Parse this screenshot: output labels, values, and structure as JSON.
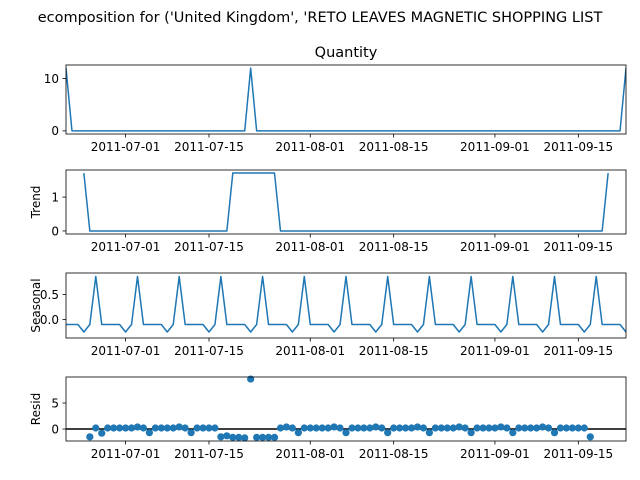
{
  "figure": {
    "suptitle": "ecomposition for ('United Kingdom', 'RETO LEAVES MAGNETIC SHOPPING LIST"
  },
  "x_tick_labels": [
    "2011-07-01",
    "2011-07-15",
    "2011-08-01",
    "2011-08-15",
    "2011-09-01",
    "2011-09-15"
  ],
  "colors": {
    "line": "#1f77b4",
    "axes": "#000000",
    "background": "#ffffff"
  },
  "chart_data": [
    {
      "type": "line",
      "title": "Quantity",
      "ylabel": "",
      "x_range": [
        "2011-06-21",
        "2011-09-23"
      ],
      "ylim": [
        -0.6,
        12.6
      ],
      "yticks": [
        0,
        10
      ],
      "ytick_labels": [
        "0",
        "10"
      ],
      "series": [
        {
          "points": [
            [
              "2011-06-21",
              12
            ],
            [
              "2011-06-22",
              0
            ],
            [
              "2011-07-21",
              0
            ],
            [
              "2011-07-22",
              12
            ],
            [
              "2011-07-23",
              0
            ],
            [
              "2011-09-22",
              0
            ],
            [
              "2011-09-23",
              12
            ]
          ]
        }
      ]
    },
    {
      "type": "line",
      "title": "",
      "ylabel": "Trend",
      "x_range": [
        "2011-06-21",
        "2011-09-23"
      ],
      "ylim": [
        -0.09,
        1.8
      ],
      "yticks": [
        0,
        1
      ],
      "ytick_labels": [
        "0",
        "1"
      ],
      "series": [
        {
          "points": [
            [
              "2011-06-24",
              1.71
            ],
            [
              "2011-06-25",
              0
            ],
            [
              "2011-07-18",
              0
            ],
            [
              "2011-07-19",
              1.71
            ],
            [
              "2011-07-26",
              1.71
            ],
            [
              "2011-07-27",
              0
            ],
            [
              "2011-09-19",
              0
            ],
            [
              "2011-09-20",
              1.71
            ]
          ]
        }
      ]
    },
    {
      "type": "line",
      "title": "",
      "ylabel": "Seasonal",
      "x_range": [
        "2011-06-21",
        "2011-09-23"
      ],
      "ylim": [
        -0.37,
        0.93
      ],
      "yticks": [
        0,
        0.5
      ],
      "ytick_labels": [
        "0.0",
        "0.5"
      ],
      "series": [
        {
          "weekly_pattern": [
            -0.1,
            -0.1,
            -0.1,
            -0.25,
            -0.1,
            0.86,
            -0.1
          ],
          "points": [
            [
              "2011-06-21",
              -0.1
            ],
            [
              "2011-06-22",
              -0.1
            ],
            [
              "2011-06-23",
              -0.1
            ],
            [
              "2011-06-24",
              -0.25
            ],
            [
              "2011-06-25",
              -0.1
            ],
            [
              "2011-06-26",
              0.86
            ],
            [
              "2011-06-27",
              -0.1
            ],
            [
              "2011-06-28",
              -0.1
            ],
            [
              "2011-06-29",
              -0.1
            ],
            [
              "2011-06-30",
              -0.1
            ],
            [
              "2011-07-01",
              -0.25
            ],
            [
              "2011-07-02",
              -0.1
            ],
            [
              "2011-07-03",
              0.86
            ],
            [
              "2011-07-04",
              -0.1
            ],
            [
              "2011-07-05",
              -0.1
            ],
            [
              "2011-07-06",
              -0.1
            ],
            [
              "2011-07-07",
              -0.1
            ],
            [
              "2011-07-08",
              -0.25
            ],
            [
              "2011-07-09",
              -0.1
            ],
            [
              "2011-07-10",
              0.86
            ],
            [
              "2011-07-11",
              -0.1
            ],
            [
              "2011-07-12",
              -0.1
            ],
            [
              "2011-07-13",
              -0.1
            ],
            [
              "2011-07-14",
              -0.1
            ],
            [
              "2011-07-15",
              -0.25
            ],
            [
              "2011-07-16",
              -0.1
            ],
            [
              "2011-07-17",
              0.86
            ],
            [
              "2011-07-18",
              -0.1
            ],
            [
              "2011-07-19",
              -0.1
            ],
            [
              "2011-07-20",
              -0.1
            ],
            [
              "2011-07-21",
              -0.1
            ],
            [
              "2011-07-22",
              -0.25
            ],
            [
              "2011-07-23",
              -0.1
            ],
            [
              "2011-07-24",
              0.86
            ],
            [
              "2011-07-25",
              -0.1
            ],
            [
              "2011-07-26",
              -0.1
            ],
            [
              "2011-07-27",
              -0.1
            ],
            [
              "2011-07-28",
              -0.1
            ],
            [
              "2011-07-29",
              -0.25
            ],
            [
              "2011-07-30",
              -0.1
            ],
            [
              "2011-07-31",
              0.86
            ],
            [
              "2011-08-01",
              -0.1
            ],
            [
              "2011-08-02",
              -0.1
            ],
            [
              "2011-08-03",
              -0.1
            ],
            [
              "2011-08-04",
              -0.1
            ],
            [
              "2011-08-05",
              -0.25
            ],
            [
              "2011-08-06",
              -0.1
            ],
            [
              "2011-08-07",
              0.86
            ],
            [
              "2011-08-08",
              -0.1
            ],
            [
              "2011-08-09",
              -0.1
            ],
            [
              "2011-08-10",
              -0.1
            ],
            [
              "2011-08-11",
              -0.1
            ],
            [
              "2011-08-12",
              -0.25
            ],
            [
              "2011-08-13",
              -0.1
            ],
            [
              "2011-08-14",
              0.86
            ],
            [
              "2011-08-15",
              -0.1
            ],
            [
              "2011-08-16",
              -0.1
            ],
            [
              "2011-08-17",
              -0.1
            ],
            [
              "2011-08-18",
              -0.1
            ],
            [
              "2011-08-19",
              -0.25
            ],
            [
              "2011-08-20",
              -0.1
            ],
            [
              "2011-08-21",
              0.86
            ],
            [
              "2011-08-22",
              -0.1
            ],
            [
              "2011-08-23",
              -0.1
            ],
            [
              "2011-08-24",
              -0.1
            ],
            [
              "2011-08-25",
              -0.1
            ],
            [
              "2011-08-26",
              -0.25
            ],
            [
              "2011-08-27",
              -0.1
            ],
            [
              "2011-08-28",
              0.86
            ],
            [
              "2011-08-29",
              -0.1
            ],
            [
              "2011-08-30",
              -0.1
            ],
            [
              "2011-08-31",
              -0.1
            ],
            [
              "2011-09-01",
              -0.1
            ],
            [
              "2011-09-02",
              -0.25
            ],
            [
              "2011-09-03",
              -0.1
            ],
            [
              "2011-09-04",
              0.86
            ],
            [
              "2011-09-05",
              -0.1
            ],
            [
              "2011-09-06",
              -0.1
            ],
            [
              "2011-09-07",
              -0.1
            ],
            [
              "2011-09-08",
              -0.1
            ],
            [
              "2011-09-09",
              -0.25
            ],
            [
              "2011-09-10",
              -0.1
            ],
            [
              "2011-09-11",
              0.86
            ],
            [
              "2011-09-12",
              -0.1
            ],
            [
              "2011-09-13",
              -0.1
            ],
            [
              "2011-09-14",
              -0.1
            ],
            [
              "2011-09-15",
              -0.1
            ],
            [
              "2011-09-16",
              -0.25
            ],
            [
              "2011-09-17",
              -0.1
            ],
            [
              "2011-09-18",
              0.86
            ],
            [
              "2011-09-19",
              -0.1
            ],
            [
              "2011-09-20",
              -0.1
            ],
            [
              "2011-09-21",
              -0.1
            ],
            [
              "2011-09-22",
              -0.1
            ],
            [
              "2011-09-23",
              -0.25
            ]
          ]
        }
      ]
    },
    {
      "type": "scatter",
      "title": "",
      "ylabel": "Resid",
      "x_range": [
        "2011-06-21",
        "2011-09-23"
      ],
      "ylim": [
        -2.3,
        10.0
      ],
      "yticks": [
        0,
        5
      ],
      "ytick_labels": [
        "0",
        "5"
      ],
      "baseline": 0,
      "series": [
        {
          "points": [
            [
              "2011-06-25",
              -1.5
            ],
            [
              "2011-06-26",
              0.2
            ],
            [
              "2011-06-27",
              -0.8
            ],
            [
              "2011-06-28",
              0.2
            ],
            [
              "2011-06-29",
              0.2
            ],
            [
              "2011-06-30",
              0.2
            ],
            [
              "2011-07-01",
              0.2
            ],
            [
              "2011-07-02",
              0.2
            ],
            [
              "2011-07-03",
              0.4
            ],
            [
              "2011-07-04",
              0.2
            ],
            [
              "2011-07-05",
              -0.7
            ],
            [
              "2011-07-06",
              0.2
            ],
            [
              "2011-07-07",
              0.2
            ],
            [
              "2011-07-08",
              0.2
            ],
            [
              "2011-07-09",
              0.2
            ],
            [
              "2011-07-10",
              0.4
            ],
            [
              "2011-07-11",
              0.2
            ],
            [
              "2011-07-12",
              -0.7
            ],
            [
              "2011-07-13",
              0.2
            ],
            [
              "2011-07-14",
              0.2
            ],
            [
              "2011-07-15",
              0.2
            ],
            [
              "2011-07-16",
              0.2
            ],
            [
              "2011-07-17",
              -1.5
            ],
            [
              "2011-07-18",
              -1.3
            ],
            [
              "2011-07-19",
              -1.6
            ],
            [
              "2011-07-20",
              -1.6
            ],
            [
              "2011-07-21",
              -1.7
            ],
            [
              "2011-07-22",
              9.6
            ],
            [
              "2011-07-23",
              -1.6
            ],
            [
              "2011-07-24",
              -1.6
            ],
            [
              "2011-07-25",
              -1.6
            ],
            [
              "2011-07-26",
              -1.6
            ],
            [
              "2011-07-27",
              0.2
            ],
            [
              "2011-07-28",
              0.4
            ],
            [
              "2011-07-29",
              0.2
            ],
            [
              "2011-07-30",
              -0.7
            ],
            [
              "2011-07-31",
              0.2
            ],
            [
              "2011-08-01",
              0.2
            ],
            [
              "2011-08-02",
              0.2
            ],
            [
              "2011-08-03",
              0.2
            ],
            [
              "2011-08-04",
              0.2
            ],
            [
              "2011-08-05",
              0.4
            ],
            [
              "2011-08-06",
              0.2
            ],
            [
              "2011-08-07",
              -0.7
            ],
            [
              "2011-08-08",
              0.2
            ],
            [
              "2011-08-09",
              0.2
            ],
            [
              "2011-08-10",
              0.2
            ],
            [
              "2011-08-11",
              0.2
            ],
            [
              "2011-08-12",
              0.4
            ],
            [
              "2011-08-13",
              0.2
            ],
            [
              "2011-08-14",
              -0.7
            ],
            [
              "2011-08-15",
              0.2
            ],
            [
              "2011-08-16",
              0.2
            ],
            [
              "2011-08-17",
              0.2
            ],
            [
              "2011-08-18",
              0.2
            ],
            [
              "2011-08-19",
              0.4
            ],
            [
              "2011-08-20",
              0.2
            ],
            [
              "2011-08-21",
              -0.7
            ],
            [
              "2011-08-22",
              0.2
            ],
            [
              "2011-08-23",
              0.2
            ],
            [
              "2011-08-24",
              0.2
            ],
            [
              "2011-08-25",
              0.2
            ],
            [
              "2011-08-26",
              0.4
            ],
            [
              "2011-08-27",
              0.2
            ],
            [
              "2011-08-28",
              -0.7
            ],
            [
              "2011-08-29",
              0.2
            ],
            [
              "2011-08-30",
              0.2
            ],
            [
              "2011-08-31",
              0.2
            ],
            [
              "2011-09-01",
              0.2
            ],
            [
              "2011-09-02",
              0.4
            ],
            [
              "2011-09-03",
              0.2
            ],
            [
              "2011-09-04",
              -0.7
            ],
            [
              "2011-09-05",
              0.2
            ],
            [
              "2011-09-06",
              0.2
            ],
            [
              "2011-09-07",
              0.2
            ],
            [
              "2011-09-08",
              0.2
            ],
            [
              "2011-09-09",
              0.4
            ],
            [
              "2011-09-10",
              0.2
            ],
            [
              "2011-09-11",
              -0.7
            ],
            [
              "2011-09-12",
              0.2
            ],
            [
              "2011-09-13",
              0.2
            ],
            [
              "2011-09-14",
              0.2
            ],
            [
              "2011-09-15",
              0.2
            ],
            [
              "2011-09-16",
              0.2
            ],
            [
              "2011-09-17",
              -1.5
            ]
          ]
        }
      ]
    }
  ]
}
